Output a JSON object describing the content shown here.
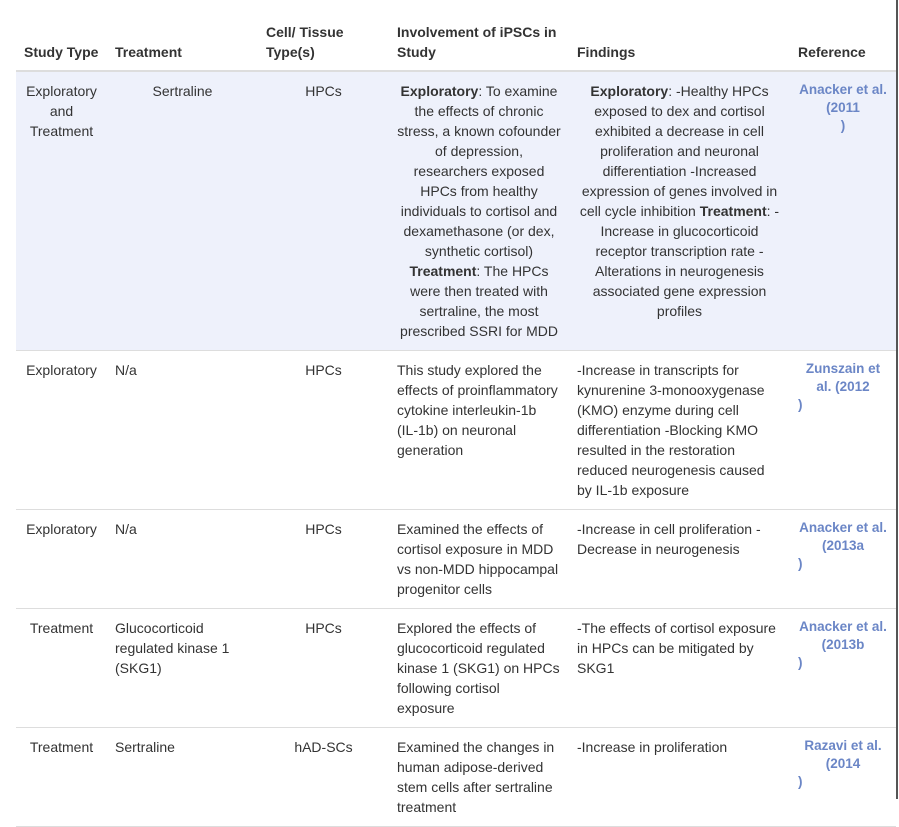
{
  "headers": {
    "study_type": "Study Type",
    "treatment": "Treatment",
    "cell": "Cell/ Tissue Type(s)",
    "involvement": "Involvement of iPSCs in Study",
    "findings": "Findings",
    "reference": "Reference"
  },
  "rows": [
    {
      "study_type": "Exploratory and Treatment",
      "treatment": "Sertraline",
      "cell": "HPCs",
      "inv_b1": "Exploratory",
      "inv_t1": ": To examine the effects of chronic stress, a known cofounder of depression, researchers exposed HPCs from healthy individuals to cortisol and dexamethasone (or dex, synthetic cortisol) ",
      "inv_b2": "Treatment",
      "inv_t2": ": The HPCs were then treated with sertraline, the most prescribed SSRI for MDD",
      "fin_b1": "Exploratory",
      "fin_t1": ": -Healthy HPCs exposed to dex and cortisol exhibited a decrease in cell proliferation and neuronal differentiation -Increased expression of genes involved in cell cycle inhibition ",
      "fin_b2": "Treatment",
      "fin_t2": ": -Increase in glucocorticoid receptor transcription rate -Alterations in neurogenesis associated gene expression profiles",
      "reference": "Anacker et al. (2011",
      "ref_close": ")"
    },
    {
      "study_type": "Exploratory",
      "treatment": "N/a",
      "cell": "HPCs",
      "involvement": "This study explored the effects of proinflammatory cytokine interleukin-1b (IL-1b) on neuronal generation",
      "findings": "-Increase in transcripts for kynurenine 3-monooxygenase (KMO) enzyme during cell differentiation -Blocking KMO resulted in the restoration reduced neurogenesis caused by IL-1b exposure",
      "reference": "Zunszain et al. (2012",
      "ref_close": ")"
    },
    {
      "study_type": "Exploratory",
      "treatment": "N/a",
      "cell": "HPCs",
      "involvement": "Examined the effects of cortisol exposure in MDD vs non-MDD hippocampal progenitor cells",
      "findings": "-Increase in cell proliferation -Decrease in neurogenesis",
      "reference": "Anacker et al. (2013a",
      "ref_close": ")"
    },
    {
      "study_type": "Treatment",
      "treatment": "Glucocorticoid regulated kinase 1 (SKG1)",
      "cell": "HPCs",
      "involvement": "Explored the effects of glucocorticoid regulated kinase 1 (SKG1) on HPCs following cortisol exposure",
      "findings": "-The effects of cortisol exposure in HPCs can be mitigated by SKG1",
      "reference": "Anacker et al. (2013b",
      "ref_close": ")"
    },
    {
      "study_type": "Treatment",
      "treatment": "Sertraline",
      "cell": "hAD-SCs",
      "involvement": "Examined the changes in human adipose-derived stem cells after sertraline treatment",
      "findings": "-Increase in proliferation",
      "reference": "Razavi et al. (2014",
      "ref_close": ")"
    }
  ]
}
